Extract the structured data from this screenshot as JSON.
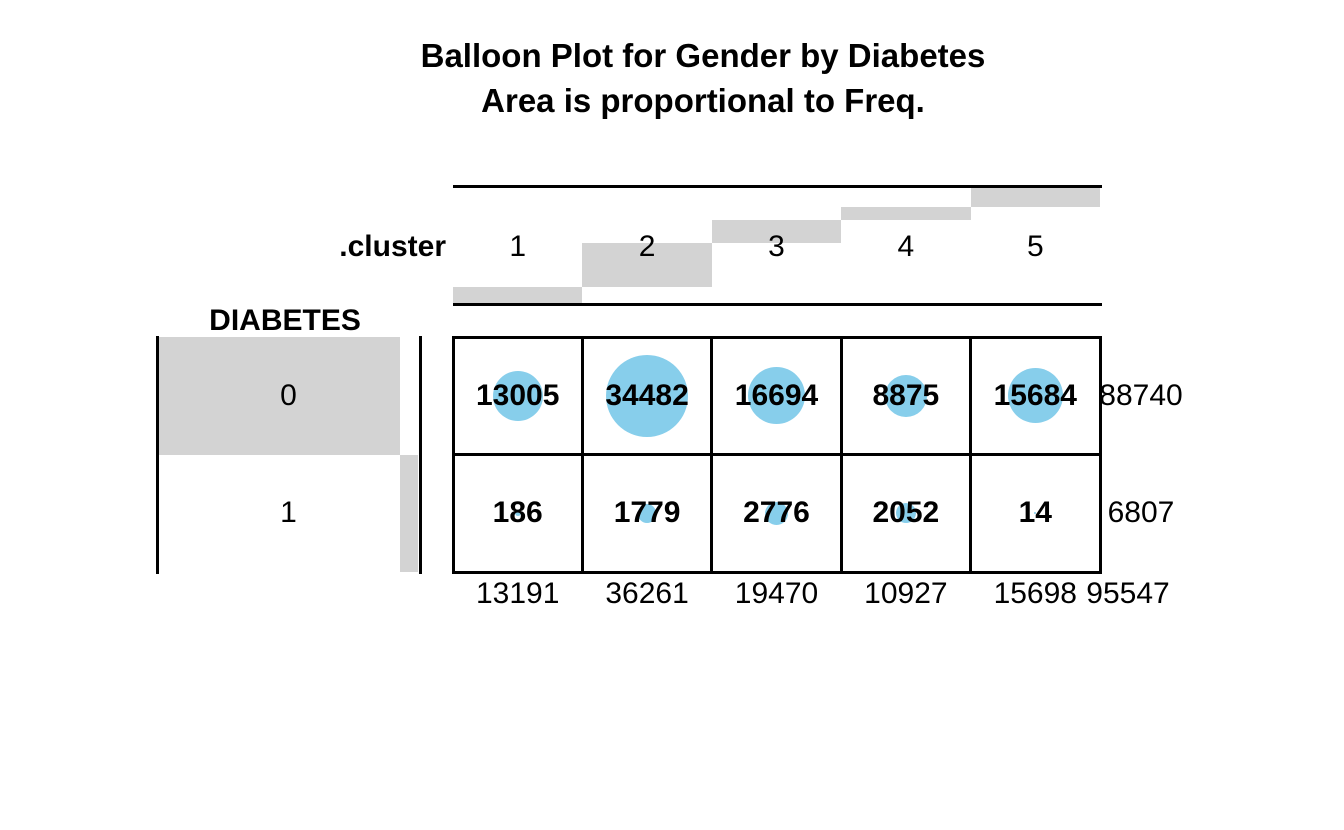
{
  "chart_data": {
    "type": "table",
    "variant": "balloon-plot",
    "title": "Balloon Plot for Gender by Diabetes",
    "subtitle": "Area is proportional to Freq.",
    "column_variable": ".cluster",
    "row_variable": "DIABETES",
    "columns": [
      "1",
      "2",
      "3",
      "4",
      "5"
    ],
    "rows": [
      "0",
      "1"
    ],
    "values": [
      [
        13005,
        34482,
        16694,
        8875,
        15684
      ],
      [
        186,
        1779,
        2776,
        2052,
        14
      ]
    ],
    "row_totals": [
      88740,
      6807
    ],
    "column_totals": [
      13191,
      36261,
      19470,
      10927,
      15698
    ],
    "grand_total": 95547,
    "balloon_color": "#87CEEB",
    "margin_bar_color": "#D3D3D3",
    "text_color": "#000000",
    "legend": "margin bars show row/column sums; balloon area proportional to cell Freq"
  }
}
